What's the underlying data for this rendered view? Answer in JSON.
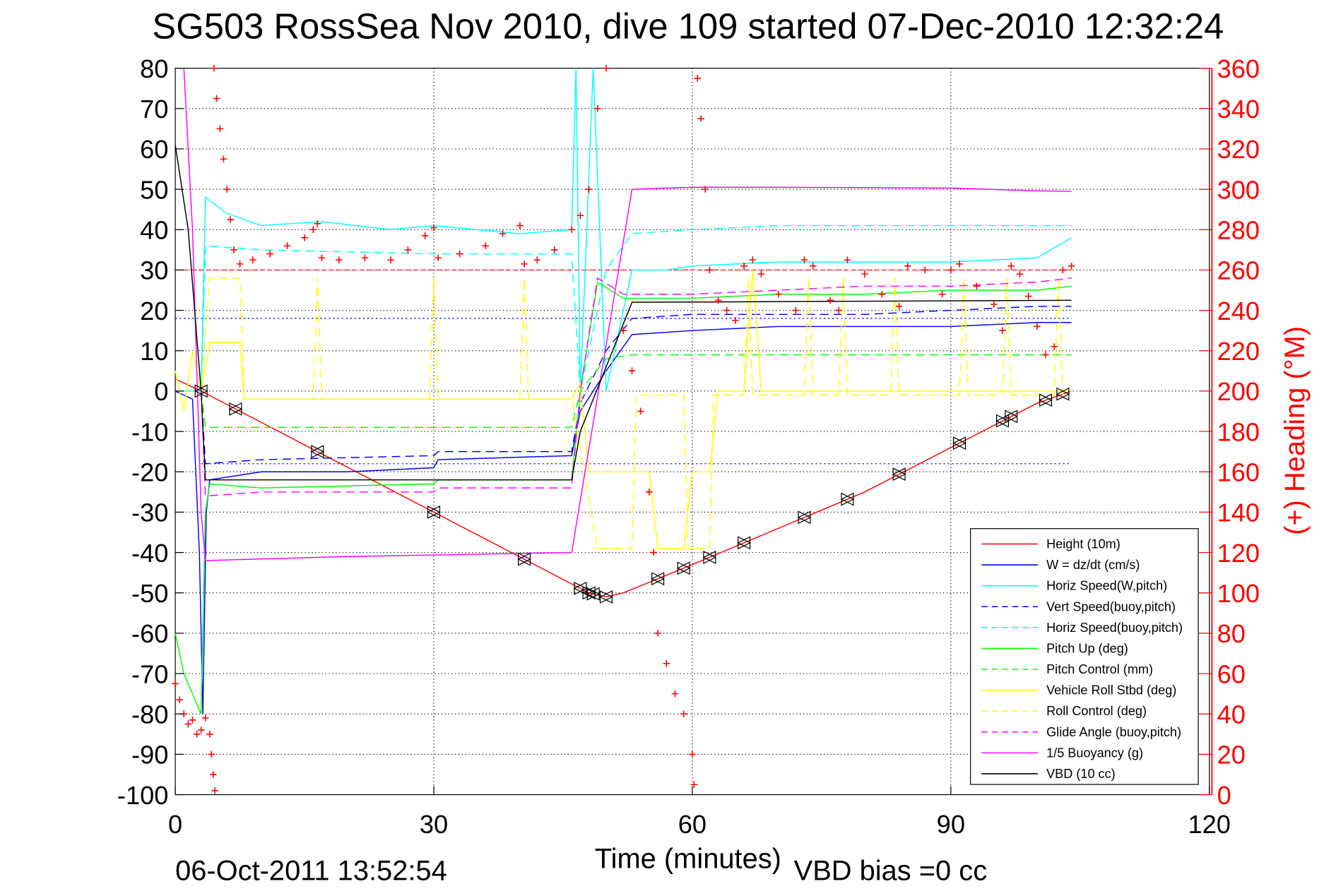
{
  "chart_data": {
    "type": "line",
    "title": "SG503 RossSea Nov 2010, dive 109 started 07-Dec-2010 12:32:24",
    "xlabel": "Time (minutes)",
    "ylabel_right": "(+) Heading (°M)",
    "footer_left": "06-Oct-2011 13:52:54",
    "footer_right": "VBD bias =0 cc",
    "xlim": [
      0,
      120
    ],
    "ylim": [
      -100,
      80
    ],
    "ylim_right": [
      0,
      360
    ],
    "xticks": [
      "0",
      "30",
      "60",
      "90",
      "120"
    ],
    "yticks": [
      "80",
      "70",
      "60",
      "50",
      "40",
      "30",
      "20",
      "10",
      "0",
      "-10",
      "-20",
      "-30",
      "-40",
      "-50",
      "-60",
      "-70",
      "-80",
      "-90",
      "-100"
    ],
    "yticks_right": [
      "360",
      "340",
      "320",
      "300",
      "280",
      "260",
      "240",
      "220",
      "200",
      "180",
      "160",
      "140",
      "120",
      "100",
      "80",
      "60",
      "40",
      "20",
      "0"
    ],
    "grid": true,
    "legend_position": "bottom-right",
    "series": [
      {
        "name": "Height (10m)",
        "color": "#ff0000",
        "dash": "",
        "points": [
          [
            0,
            3
          ],
          [
            3,
            0
          ],
          [
            48,
            -50
          ],
          [
            50,
            -51
          ],
          [
            52,
            -50
          ],
          [
            60,
            -43
          ],
          [
            70,
            -34
          ],
          [
            80,
            -25
          ],
          [
            90,
            -14
          ],
          [
            100,
            -3
          ],
          [
            104,
            0
          ]
        ]
      },
      {
        "name": "W = dz/dt (cm/s)",
        "color": "#0000ff",
        "dash": "",
        "points": [
          [
            0,
            0
          ],
          [
            2,
            -2
          ],
          [
            2.8,
            -40
          ],
          [
            3.2,
            -80
          ],
          [
            3.6,
            -30
          ],
          [
            4,
            -22
          ],
          [
            10,
            -20
          ],
          [
            20,
            -20
          ],
          [
            30,
            -19
          ],
          [
            30.5,
            -17
          ],
          [
            46,
            -16
          ],
          [
            47,
            -5
          ],
          [
            50,
            5
          ],
          [
            53,
            14
          ],
          [
            60,
            15
          ],
          [
            70,
            16
          ],
          [
            80,
            16
          ],
          [
            90,
            16
          ],
          [
            100,
            17
          ],
          [
            104,
            17
          ]
        ]
      },
      {
        "name": "Horiz Speed(W,pitch)",
        "color": "#00ffff",
        "dash": "",
        "points": [
          [
            0,
            0
          ],
          [
            3,
            0
          ],
          [
            3.5,
            48
          ],
          [
            6,
            44
          ],
          [
            10,
            41
          ],
          [
            17,
            42
          ],
          [
            25,
            40
          ],
          [
            30,
            41
          ],
          [
            40,
            39
          ],
          [
            46,
            40
          ],
          [
            46.5,
            80
          ],
          [
            47,
            0
          ],
          [
            48.5,
            80
          ],
          [
            50,
            0
          ],
          [
            53,
            30
          ],
          [
            57,
            30
          ],
          [
            60,
            31
          ],
          [
            70,
            32
          ],
          [
            80,
            32
          ],
          [
            90,
            32
          ],
          [
            100,
            33
          ],
          [
            104,
            38
          ]
        ]
      },
      {
        "name": "Vert Speed(buoy,pitch)",
        "color": "#0000ff",
        "dash": "10,6",
        "points": [
          [
            3,
            0
          ],
          [
            3.5,
            -18
          ],
          [
            10,
            -17
          ],
          [
            30,
            -16
          ],
          [
            30.5,
            -15
          ],
          [
            46,
            -15
          ],
          [
            47,
            -3
          ],
          [
            50,
            10
          ],
          [
            53,
            18
          ],
          [
            60,
            19
          ],
          [
            70,
            19
          ],
          [
            80,
            19
          ],
          [
            90,
            20
          ],
          [
            100,
            21
          ],
          [
            104,
            21
          ]
        ]
      },
      {
        "name": "Horiz Speed(buoy,pitch)",
        "color": "#00ffff",
        "dash": "10,6",
        "points": [
          [
            3,
            0
          ],
          [
            3.5,
            36
          ],
          [
            10,
            35
          ],
          [
            30,
            34
          ],
          [
            46,
            34
          ],
          [
            47,
            0
          ],
          [
            50,
            30
          ],
          [
            53,
            39
          ],
          [
            60,
            40
          ],
          [
            70,
            41
          ],
          [
            80,
            41
          ],
          [
            90,
            41
          ],
          [
            100,
            41
          ],
          [
            104,
            41
          ]
        ]
      },
      {
        "name": "Pitch Up (deg)",
        "color": "#00ff00",
        "dash": "",
        "points": [
          [
            0,
            -60
          ],
          [
            1,
            -70
          ],
          [
            2,
            -75
          ],
          [
            3,
            -80
          ],
          [
            3.5,
            -30
          ],
          [
            4,
            -23
          ],
          [
            10,
            -24
          ],
          [
            30,
            -23
          ],
          [
            30.5,
            -22
          ],
          [
            46,
            -22
          ],
          [
            47,
            0
          ],
          [
            49,
            27
          ],
          [
            52,
            23
          ],
          [
            60,
            23
          ],
          [
            70,
            24
          ],
          [
            80,
            24
          ],
          [
            90,
            25
          ],
          [
            100,
            25
          ],
          [
            104,
            26
          ]
        ]
      },
      {
        "name": "Pitch Control (mm)",
        "color": "#00ff00",
        "dash": "10,6",
        "points": [
          [
            3,
            0
          ],
          [
            3.5,
            -9
          ],
          [
            46,
            -9
          ],
          [
            47,
            0
          ],
          [
            50,
            8
          ],
          [
            53,
            9
          ],
          [
            104,
            9
          ]
        ]
      },
      {
        "name": "Vehicle Roll Stbd (deg)",
        "color": "#ffff00",
        "dash": "",
        "points": [
          [
            0,
            5
          ],
          [
            1,
            -5
          ],
          [
            2,
            10
          ],
          [
            3,
            0
          ],
          [
            4,
            12
          ],
          [
            7.5,
            12
          ],
          [
            8,
            -2
          ],
          [
            46,
            -2
          ],
          [
            47,
            2
          ],
          [
            48,
            -20
          ],
          [
            55,
            -20
          ],
          [
            56,
            -39
          ],
          [
            59,
            -39
          ],
          [
            60,
            -20
          ],
          [
            62,
            -20
          ],
          [
            63,
            0
          ],
          [
            66,
            0
          ],
          [
            67,
            30
          ],
          [
            68,
            0
          ],
          [
            104,
            0
          ]
        ]
      },
      {
        "name": "Roll Control (deg)",
        "color": "#ffff00",
        "dash": "10,6",
        "points": [
          [
            3,
            0
          ],
          [
            4,
            28
          ],
          [
            7.5,
            28
          ],
          [
            8,
            -2
          ],
          [
            16,
            -2
          ],
          [
            16.5,
            28
          ],
          [
            17,
            -2
          ],
          [
            29.5,
            -2
          ],
          [
            30,
            28
          ],
          [
            30.5,
            -2
          ],
          [
            40,
            -2
          ],
          [
            40.5,
            28
          ],
          [
            41,
            -2
          ],
          [
            46,
            -2
          ],
          [
            49,
            -39
          ],
          [
            53,
            -39
          ],
          [
            53.5,
            -1
          ],
          [
            59,
            -1
          ],
          [
            59.5,
            -39
          ],
          [
            62,
            -39
          ],
          [
            62.5,
            -1
          ],
          [
            66,
            -1
          ],
          [
            66.5,
            28
          ],
          [
            67,
            -1
          ],
          [
            73,
            -1
          ],
          [
            73.5,
            28
          ],
          [
            74,
            -1
          ],
          [
            77,
            -1
          ],
          [
            77.5,
            28
          ],
          [
            78,
            -1
          ],
          [
            83,
            -1
          ],
          [
            83.5,
            28
          ],
          [
            84,
            -1
          ],
          [
            91,
            -1
          ],
          [
            91.5,
            28
          ],
          [
            92,
            -1
          ],
          [
            96,
            -1
          ],
          [
            96.5,
            28
          ],
          [
            97,
            -1
          ],
          [
            102,
            -1
          ],
          [
            102.5,
            28
          ],
          [
            103,
            -1
          ]
        ]
      },
      {
        "name": "Glide Angle (buoy,pitch)",
        "color": "#ff00ff",
        "dash": "10,6",
        "points": [
          [
            3,
            0
          ],
          [
            3.5,
            -26
          ],
          [
            10,
            -25
          ],
          [
            30,
            -25
          ],
          [
            30.5,
            -24
          ],
          [
            46,
            -24
          ],
          [
            47,
            0
          ],
          [
            49,
            28
          ],
          [
            52,
            24
          ],
          [
            60,
            24
          ],
          [
            70,
            25
          ],
          [
            80,
            26
          ],
          [
            90,
            26
          ],
          [
            100,
            27
          ],
          [
            104,
            28
          ]
        ]
      },
      {
        "name": "1/5 Buoyancy (g)",
        "color": "#ff00ff",
        "dash": "",
        "points": [
          [
            1,
            80
          ],
          [
            2,
            40
          ],
          [
            3,
            -30
          ],
          [
            3.5,
            -42
          ],
          [
            20,
            -41
          ],
          [
            46,
            -40
          ],
          [
            53,
            50
          ],
          [
            60,
            50.5
          ],
          [
            70,
            50.5
          ],
          [
            90,
            50.3
          ],
          [
            100,
            49.6
          ],
          [
            104,
            49.5
          ]
        ]
      },
      {
        "name": "VBD (10 cc)",
        "color": "#000000",
        "dash": "",
        "points": [
          [
            0,
            61
          ],
          [
            1.5,
            40
          ],
          [
            3,
            0
          ],
          [
            3.5,
            -22
          ],
          [
            46,
            -22
          ],
          [
            47,
            -10
          ],
          [
            53,
            22
          ],
          [
            104,
            22.5
          ]
        ]
      }
    ],
    "reference_lines": [
      {
        "name": "heading-target",
        "color": "#ff0000",
        "dash": "6,3",
        "y": 30,
        "from": 0,
        "to": 104
      },
      {
        "name": "pitch-target-up",
        "color": "#0000ff",
        "dash": "2,3",
        "y": 18,
        "from": 0,
        "to": 104
      },
      {
        "name": "pitch-target-down",
        "color": "#0000ff",
        "dash": "2,3",
        "y": -18,
        "from": 3,
        "to": 104
      }
    ],
    "depth_markers": [
      3,
      7,
      16.5,
      30,
      40.5,
      47,
      48,
      48.5,
      50,
      56,
      59,
      62,
      66,
      73,
      78,
      84,
      91,
      96,
      97,
      101,
      103
    ],
    "heading": {
      "name": "Heading",
      "axis": "right",
      "color": "#ff0000",
      "points": [
        [
          0,
          55
        ],
        [
          0.5,
          47
        ],
        [
          1,
          40
        ],
        [
          1.5,
          35
        ],
        [
          2,
          37
        ],
        [
          2.5,
          30
        ],
        [
          3,
          32
        ],
        [
          3.5,
          38
        ],
        [
          4,
          30
        ],
        [
          4.2,
          20
        ],
        [
          4.4,
          10
        ],
        [
          4.6,
          2
        ],
        [
          4.5,
          360
        ],
        [
          4.8,
          345
        ],
        [
          5.2,
          330
        ],
        [
          5.6,
          315
        ],
        [
          6,
          300
        ],
        [
          6.4,
          285
        ],
        [
          6.8,
          270
        ],
        [
          7.5,
          263
        ],
        [
          9,
          265
        ],
        [
          11,
          268
        ],
        [
          13,
          272
        ],
        [
          15,
          276
        ],
        [
          16,
          280
        ],
        [
          16.5,
          283
        ],
        [
          17,
          266
        ],
        [
          19,
          265
        ],
        [
          22,
          266
        ],
        [
          25,
          265
        ],
        [
          27,
          270
        ],
        [
          29,
          277
        ],
        [
          30,
          281
        ],
        [
          30.5,
          266
        ],
        [
          33,
          268
        ],
        [
          36,
          272
        ],
        [
          38,
          278
        ],
        [
          40,
          282
        ],
        [
          40.5,
          263
        ],
        [
          42,
          265
        ],
        [
          44,
          270
        ],
        [
          46,
          280
        ],
        [
          47,
          287
        ],
        [
          48,
          300
        ],
        [
          49,
          340
        ],
        [
          50,
          360
        ],
        [
          52,
          230
        ],
        [
          53,
          210
        ],
        [
          54,
          190
        ],
        [
          55,
          150
        ],
        [
          55.5,
          120
        ],
        [
          56,
          80
        ],
        [
          57,
          65
        ],
        [
          58,
          50
        ],
        [
          59,
          40
        ],
        [
          60,
          20
        ],
        [
          60.2,
          5
        ],
        [
          60.6,
          355
        ],
        [
          61,
          335
        ],
        [
          61.5,
          300
        ],
        [
          62,
          260
        ],
        [
          63,
          245
        ],
        [
          64,
          240
        ],
        [
          65,
          235
        ],
        [
          66,
          262
        ],
        [
          67,
          265
        ],
        [
          68,
          258
        ],
        [
          70,
          248
        ],
        [
          72,
          240
        ],
        [
          73,
          265
        ],
        [
          74,
          262
        ],
        [
          76,
          245
        ],
        [
          77,
          240
        ],
        [
          78,
          265
        ],
        [
          80,
          258
        ],
        [
          82,
          248
        ],
        [
          84,
          242
        ],
        [
          85,
          262
        ],
        [
          87,
          260
        ],
        [
          89,
          248
        ],
        [
          90,
          260
        ],
        [
          91,
          263
        ],
        [
          93,
          252
        ],
        [
          95,
          243
        ],
        [
          96,
          230
        ],
        [
          97,
          262
        ],
        [
          98,
          258
        ],
        [
          99,
          247
        ],
        [
          100,
          232
        ],
        [
          101,
          218
        ],
        [
          102,
          222
        ],
        [
          103,
          260
        ],
        [
          104,
          262
        ]
      ]
    }
  }
}
